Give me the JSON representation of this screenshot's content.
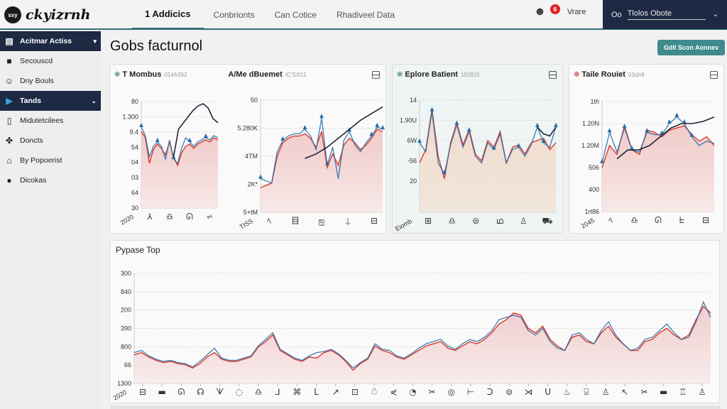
{
  "app": {
    "logo_badge": "sxy",
    "logo_text": "ckyizrnh"
  },
  "nav": {
    "tabs": [
      {
        "label": "1 Addicics",
        "active": true
      },
      {
        "label": "Conbrionts",
        "active": false
      },
      {
        "label": "Can Cotice",
        "active": false
      },
      {
        "label": "Rhadiveel Data",
        "active": false
      }
    ]
  },
  "header_right": {
    "user_icon": "user-group-icon",
    "notification_count": "6",
    "username": "Vrare",
    "select_prefix": "Oo",
    "select_value": "Tlolos Obote",
    "select_chevron": "⌄"
  },
  "sidebar": {
    "items": [
      {
        "label": "Acitmar Actiss",
        "icon": "document-icon",
        "glyph": "▤",
        "dark": true,
        "chevron": "▾"
      },
      {
        "label": "Secouscd",
        "icon": "folder-icon",
        "glyph": "■",
        "dark": false
      },
      {
        "label": "Dny Bouls",
        "icon": "smiley-icon",
        "glyph": "☺",
        "dark": false
      },
      {
        "label": "Tands",
        "icon": "play-icon",
        "glyph": "▶",
        "dark": true,
        "chevron": "⌄"
      },
      {
        "label": "Midutetcilees",
        "icon": "phone-icon",
        "glyph": "▯",
        "dark": false
      },
      {
        "label": "Doncts",
        "icon": "puzzle-icon",
        "glyph": "✤",
        "dark": false
      },
      {
        "label": "By Popoerist",
        "icon": "home-icon",
        "glyph": "⌂",
        "dark": false
      },
      {
        "label": "Dicokas",
        "icon": "browser-icon",
        "glyph": "●",
        "dark": false
      }
    ]
  },
  "page": {
    "title": "Gobs facturnol",
    "action_button": "Gdll Scon Aonnev"
  },
  "colors": {
    "accent": "#2f6f78",
    "button": "#3e8a8c",
    "dark_nav": "#1e2a44",
    "line_red": "#d9392b",
    "line_blue": "#2a6fa8",
    "line_dark": "#1c2838",
    "area_fill": "#f2d2d0",
    "badge_red": "#e02020"
  },
  "chart_data": [
    {
      "type": "area",
      "title": "T Mombus",
      "subtitle": "014A392",
      "yticks": [
        "80",
        "1.300",
        "9.4",
        "54",
        "04",
        "03",
        "64",
        "30"
      ],
      "xlabel_corner": "2020",
      "x_icons": [
        "⅄",
        "♎",
        "ᘏ",
        "⩫"
      ],
      "ylim": [
        0,
        100
      ],
      "series": [
        {
          "name": "red",
          "values": [
            72,
            66,
            42,
            55,
            60,
            56,
            50,
            62,
            48,
            40,
            52,
            58,
            60,
            56,
            60,
            62,
            64,
            62,
            66,
            64
          ]
        },
        {
          "name": "blue",
          "values": [
            76,
            68,
            48,
            58,
            62,
            58,
            46,
            64,
            46,
            42,
            56,
            66,
            62,
            58,
            62,
            64,
            66,
            64,
            68,
            66
          ]
        },
        {
          "name": "dark",
          "start_index": 8,
          "values": [
            48,
            74,
            80,
            86,
            92,
            96,
            98,
            94,
            84,
            80
          ]
        }
      ]
    },
    {
      "type": "area",
      "title": "A/Me dBuemet",
      "subtitle": "IC'S/011",
      "yticks": [
        "50",
        "5.280K",
        "4TM",
        "2K*",
        "5+tM"
      ],
      "xlabel_corner": "TISS",
      "x_icons": [
        "ﾍ",
        "目",
        "ஐ",
        "⍊",
        "⊟"
      ],
      "ylim": [
        0,
        100
      ],
      "series": [
        {
          "name": "red",
          "values": [
            22,
            24,
            26,
            50,
            62,
            66,
            68,
            68,
            70,
            66,
            58,
            72,
            40,
            52,
            42,
            60,
            66,
            62,
            56,
            60,
            66,
            74,
            72
          ]
        },
        {
          "name": "blue",
          "values": [
            30,
            28,
            26,
            54,
            64,
            68,
            70,
            70,
            74,
            68,
            56,
            84,
            42,
            58,
            30,
            64,
            72,
            60,
            54,
            62,
            68,
            76,
            74
          ]
        },
        {
          "name": "dark",
          "start_index": 8,
          "values": [
            48,
            52,
            58,
            66,
            74,
            82,
            88,
            94
          ]
        }
      ]
    },
    {
      "type": "area",
      "title": "Eplore Batient",
      "subtitle": "102815",
      "yticks": [
        "14",
        "1.90U",
        "6W",
        "-56",
        "20"
      ],
      "xlabel_corner": "Eiomb",
      "x_icons": [
        "⊞",
        "♎",
        "⊜",
        "ഥ",
        "♙",
        "⛟"
      ],
      "ylim": [
        0,
        100
      ],
      "series": [
        {
          "name": "red",
          "values": [
            44,
            56,
            92,
            50,
            30,
            62,
            80,
            60,
            74,
            52,
            46,
            64,
            58,
            72,
            44,
            58,
            60,
            52,
            62,
            64,
            66,
            56,
            62
          ]
        },
        {
          "name": "blue",
          "values": [
            62,
            54,
            90,
            44,
            34,
            60,
            78,
            58,
            72,
            50,
            44,
            62,
            56,
            70,
            44,
            56,
            58,
            50,
            60,
            76,
            62,
            58,
            76
          ]
        },
        {
          "name": "dark",
          "start_index": 19,
          "values": [
            76,
            70,
            68,
            76
          ]
        }
      ]
    },
    {
      "type": "area",
      "title": "Taile Rouiet",
      "subtitle": "03d/r8",
      "yticks": [
        "1th",
        "1.20N",
        "1.20M",
        "506",
        "400",
        "1rt86"
      ],
      "xlabel_corner": "2045",
      "x_icons": [
        "ﾍ",
        "♎",
        "ᘏ",
        "ᖶ",
        "⊟"
      ],
      "ylim": [
        0,
        100
      ],
      "series": [
        {
          "name": "red",
          "values": [
            40,
            60,
            52,
            78,
            56,
            52,
            74,
            72,
            68,
            74,
            76,
            78,
            70,
            64,
            68,
            60
          ]
        },
        {
          "name": "blue",
          "values": [
            44,
            72,
            54,
            76,
            56,
            54,
            72,
            70,
            70,
            80,
            86,
            80,
            68,
            60,
            64,
            62
          ]
        },
        {
          "name": "dark",
          "start_index": 2,
          "values": [
            48,
            56,
            56,
            60,
            68,
            76,
            80,
            80,
            82,
            86
          ]
        }
      ]
    },
    {
      "type": "area",
      "title": "Pypase Top",
      "yticks": [
        "300",
        "840",
        "200",
        "390",
        "800",
        "66",
        "1300"
      ],
      "xlabel_corner": "2020",
      "x_icons": [
        "⊟",
        "▬",
        "ᘏ",
        "☊",
        "ᗐ",
        "◌",
        "♎",
        "⅃",
        "⌘",
        "ᒪ",
        "↗",
        "⊡",
        "⍥",
        "⋞",
        "◔",
        "✂",
        "◎",
        "⊢",
        "ᑐ",
        "⊜",
        "⋊",
        "ᑌ",
        "♨",
        "⍌",
        "♙",
        "↖",
        "✂",
        "▬",
        "♖",
        "♙"
      ],
      "ylim": [
        0,
        100
      ],
      "series": [
        {
          "name": "red",
          "values": [
            26,
            28,
            24,
            21,
            19,
            20,
            18,
            17,
            14,
            18,
            24,
            28,
            22,
            20,
            20,
            22,
            24,
            33,
            38,
            44,
            30,
            26,
            22,
            20,
            24,
            23,
            28,
            30,
            26,
            20,
            12,
            18,
            22,
            34,
            30,
            28,
            24,
            22,
            26,
            30,
            34,
            36,
            38,
            32,
            30,
            34,
            38,
            36,
            40,
            46,
            54,
            58,
            64,
            62,
            50,
            46,
            52,
            40,
            34,
            30,
            42,
            44,
            38,
            36,
            46,
            52,
            42,
            36,
            30,
            30,
            38,
            40,
            46,
            50,
            44,
            40,
            44,
            58,
            70,
            64
          ]
        },
        {
          "name": "blue",
          "values": [
            28,
            30,
            25,
            22,
            20,
            21,
            19,
            18,
            15,
            20,
            26,
            32,
            23,
            21,
            21,
            23,
            25,
            34,
            40,
            46,
            31,
            27,
            23,
            21,
            25,
            28,
            29,
            31,
            27,
            21,
            14,
            19,
            23,
            36,
            31,
            30,
            25,
            23,
            27,
            32,
            36,
            38,
            40,
            34,
            31,
            36,
            40,
            38,
            42,
            48,
            58,
            60,
            62,
            60,
            48,
            44,
            50,
            38,
            32,
            30,
            44,
            46,
            40,
            36,
            48,
            56,
            44,
            36,
            30,
            32,
            40,
            42,
            48,
            54,
            46,
            40,
            42,
            56,
            74,
            60
          ]
        }
      ]
    }
  ]
}
